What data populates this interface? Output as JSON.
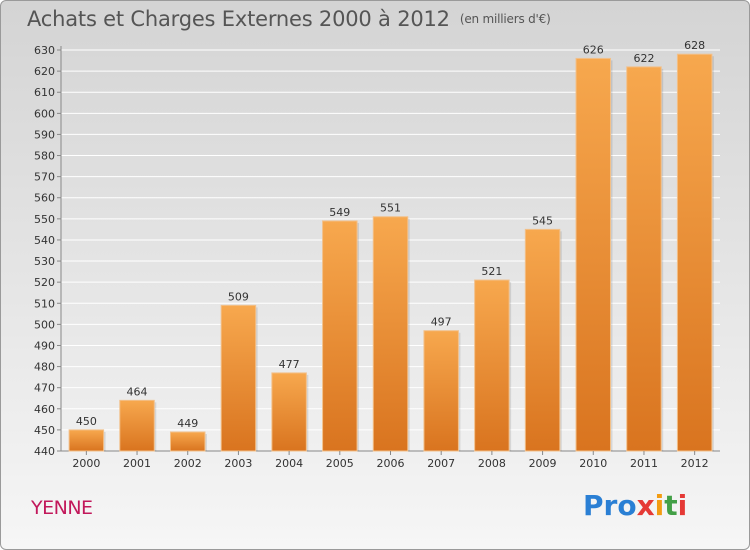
{
  "header": {
    "title": "Achats et Charges Externes 2000 à 2012",
    "unit": "(en milliers d'€)"
  },
  "footer": {
    "city": "YENNE",
    "logo": "Proxiti"
  },
  "colors": {
    "bar_light": "#f7a84e",
    "bar_dark": "#d9741f",
    "axis": "#888888",
    "grid": "#ffffff",
    "text": "#333333"
  },
  "chart_data": {
    "type": "bar",
    "title": "Achats et Charges Externes 2000 à 2012",
    "subtitle": "(en milliers d'€)",
    "categories": [
      "2000",
      "2001",
      "2002",
      "2003",
      "2004",
      "2005",
      "2006",
      "2007",
      "2008",
      "2009",
      "2010",
      "2011",
      "2012"
    ],
    "values": [
      450,
      464,
      449,
      509,
      477,
      549,
      551,
      497,
      521,
      545,
      626,
      622,
      628
    ],
    "ylim": [
      440,
      630
    ],
    "ytick_step": 10,
    "grid": true,
    "xlabel": "",
    "ylabel": ""
  }
}
